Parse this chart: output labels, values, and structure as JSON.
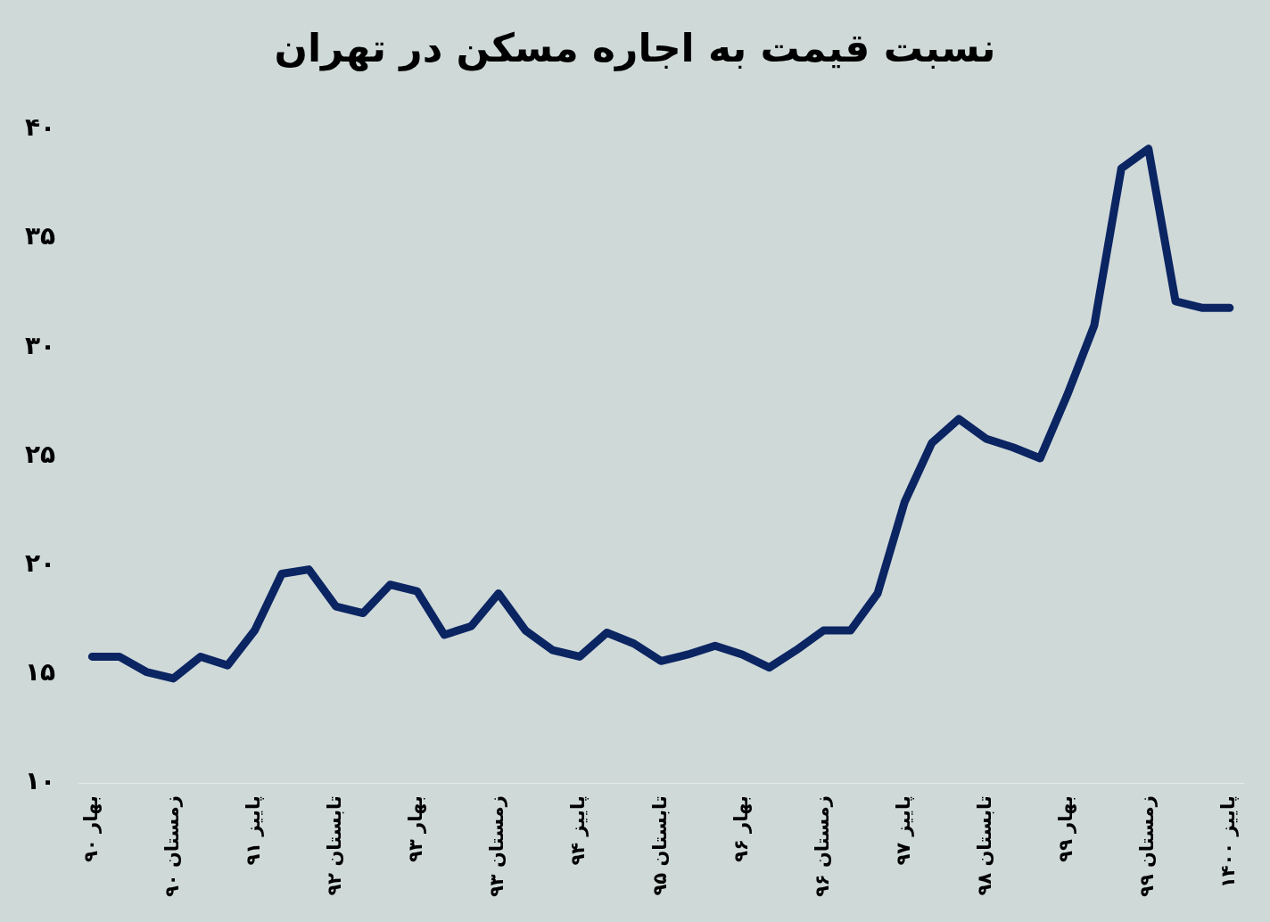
{
  "chart_data": {
    "type": "line",
    "title": "نسبت قیمت به اجاره مسکن در تهران",
    "categories": [
      "بهار ۹۰",
      null,
      null,
      "زمستان ۹۰",
      null,
      null,
      "پاییز ۹۱",
      null,
      null,
      "تابستان ۹۲",
      null,
      null,
      "بهار ۹۳",
      null,
      null,
      "زمستان ۹۳",
      null,
      null,
      "پاییز ۹۴",
      null,
      null,
      "تابستان ۹۵",
      null,
      null,
      "بهار ۹۶",
      null,
      null,
      "زمستان ۹۶",
      null,
      null,
      "پاییز ۹۷",
      null,
      null,
      "تابستان ۹۸",
      null,
      null,
      "بهار ۹۹",
      null,
      null,
      "زمستان ۹۹",
      null,
      null,
      "پاییز ۱۴۰۰"
    ],
    "series": [
      {
        "color": "#0b2562",
        "values": [
          15.8,
          15.8,
          15.1,
          14.8,
          15.8,
          15.4,
          17.0,
          19.6,
          19.8,
          18.1,
          17.8,
          19.1,
          18.8,
          16.8,
          17.2,
          18.7,
          17.0,
          16.1,
          15.8,
          16.9,
          16.4,
          15.6,
          15.9,
          16.3,
          15.9,
          15.3,
          16.1,
          17.0,
          17.0,
          18.7,
          22.9,
          25.6,
          26.7,
          25.8,
          25.4,
          24.9,
          27.8,
          31.0,
          38.2,
          39.1,
          32.1,
          31.8,
          31.8
        ]
      }
    ],
    "ylim": [
      10,
      40
    ],
    "yticks": [
      {
        "value": 10,
        "label": "۱۰"
      },
      {
        "value": 15,
        "label": "۱۵"
      },
      {
        "value": 20,
        "label": "۲۰"
      },
      {
        "value": 25,
        "label": "۲۵"
      },
      {
        "value": 30,
        "label": "۳۰"
      },
      {
        "value": 35,
        "label": "۳۵"
      },
      {
        "value": 40,
        "label": "۴۰"
      }
    ],
    "grid": false,
    "legend": false,
    "marker": "none",
    "line_style": "solid"
  }
}
